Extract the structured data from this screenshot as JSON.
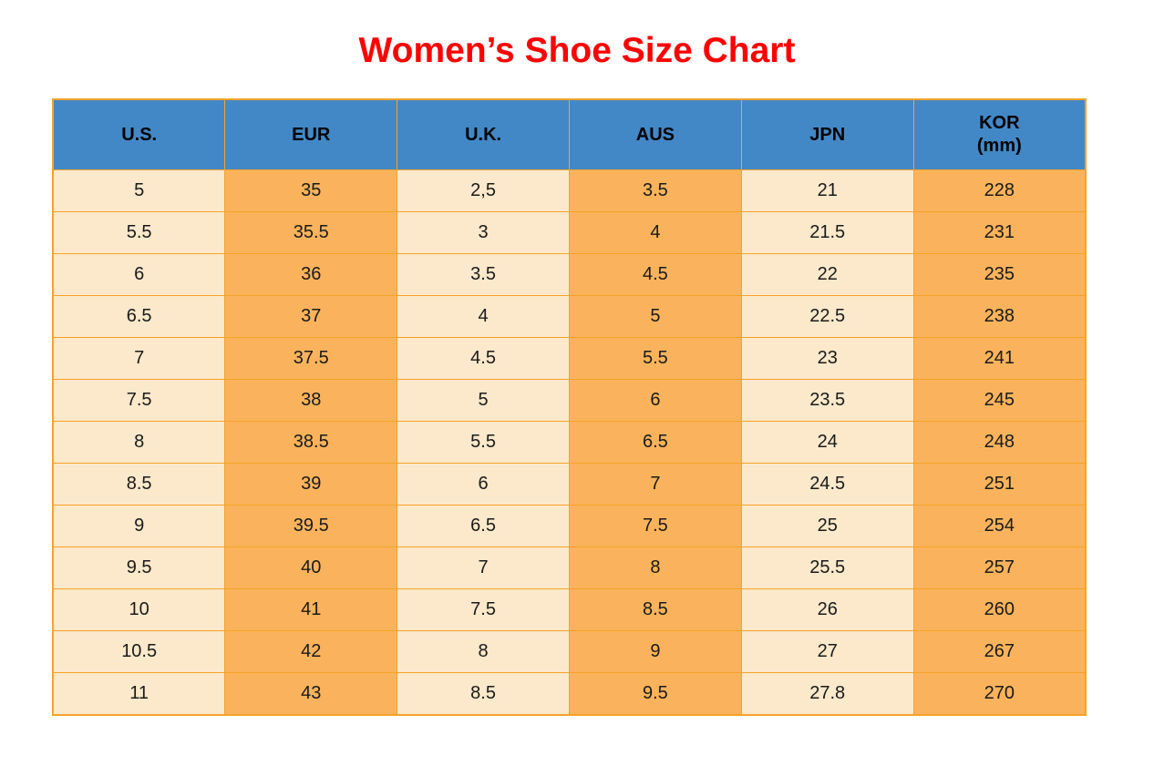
{
  "title": {
    "text": "Women’s Shoe Size Chart",
    "color": "#ff0000"
  },
  "table": {
    "colors": {
      "header_background": "#4288c7",
      "light_column": "#fce8ca",
      "dark_column": "#fab35c",
      "grid_border": "#f5a327",
      "header_text": "#000000",
      "cell_text": "#1a1a1a"
    },
    "columns": [
      {
        "key": "us",
        "label": "U.S."
      },
      {
        "key": "eur",
        "label": "EUR"
      },
      {
        "key": "uk",
        "label": "U.K."
      },
      {
        "key": "aus",
        "label": "AUS"
      },
      {
        "key": "jpn",
        "label": "JPN"
      },
      {
        "key": "kor",
        "label": "KOR",
        "sublabel": "(mm)"
      }
    ],
    "rows": [
      [
        "5",
        "35",
        "2,5",
        "3.5",
        "21",
        "228"
      ],
      [
        "5.5",
        "35.5",
        "3",
        "4",
        "21.5",
        "231"
      ],
      [
        "6",
        "36",
        "3.5",
        "4.5",
        "22",
        "235"
      ],
      [
        "6.5",
        "37",
        "4",
        "5",
        "22.5",
        "238"
      ],
      [
        "7",
        "37.5",
        "4.5",
        "5.5",
        "23",
        "241"
      ],
      [
        "7.5",
        "38",
        "5",
        "6",
        "23.5",
        "245"
      ],
      [
        "8",
        "38.5",
        "5.5",
        "6.5",
        "24",
        "248"
      ],
      [
        "8.5",
        "39",
        "6",
        "7",
        "24.5",
        "251"
      ],
      [
        "9",
        "39.5",
        "6.5",
        "7.5",
        "25",
        "254"
      ],
      [
        "9.5",
        "40",
        "7",
        "8",
        "25.5",
        "257"
      ],
      [
        "10",
        "41",
        "7.5",
        "8.5",
        "26",
        "260"
      ],
      [
        "10.5",
        "42",
        "8",
        "9",
        "27",
        "267"
      ],
      [
        "11",
        "43",
        "8.5",
        "9.5",
        "27.8",
        "270"
      ]
    ]
  },
  "chart_data": {
    "type": "table",
    "title": "Women’s Shoe Size Chart",
    "columns": [
      "U.S.",
      "EUR",
      "U.K.",
      "AUS",
      "JPN",
      "KOR (mm)"
    ],
    "rows": [
      [
        "5",
        "35",
        "2,5",
        "3.5",
        "21",
        "228"
      ],
      [
        "5.5",
        "35.5",
        "3",
        "4",
        "21.5",
        "231"
      ],
      [
        "6",
        "36",
        "3.5",
        "4.5",
        "22",
        "235"
      ],
      [
        "6.5",
        "37",
        "4",
        "5",
        "22.5",
        "238"
      ],
      [
        "7",
        "37.5",
        "4.5",
        "5.5",
        "23",
        "241"
      ],
      [
        "7.5",
        "38",
        "5",
        "6",
        "23.5",
        "245"
      ],
      [
        "8",
        "38.5",
        "5.5",
        "6.5",
        "24",
        "248"
      ],
      [
        "8.5",
        "39",
        "6",
        "7",
        "24.5",
        "251"
      ],
      [
        "9",
        "39.5",
        "6.5",
        "7.5",
        "25",
        "254"
      ],
      [
        "9.5",
        "40",
        "7",
        "8",
        "25.5",
        "257"
      ],
      [
        "10",
        "41",
        "7.5",
        "8.5",
        "26",
        "260"
      ],
      [
        "10.5",
        "42",
        "8",
        "9",
        "27",
        "267"
      ],
      [
        "11",
        "43",
        "8.5",
        "9.5",
        "27.8",
        "270"
      ]
    ]
  }
}
